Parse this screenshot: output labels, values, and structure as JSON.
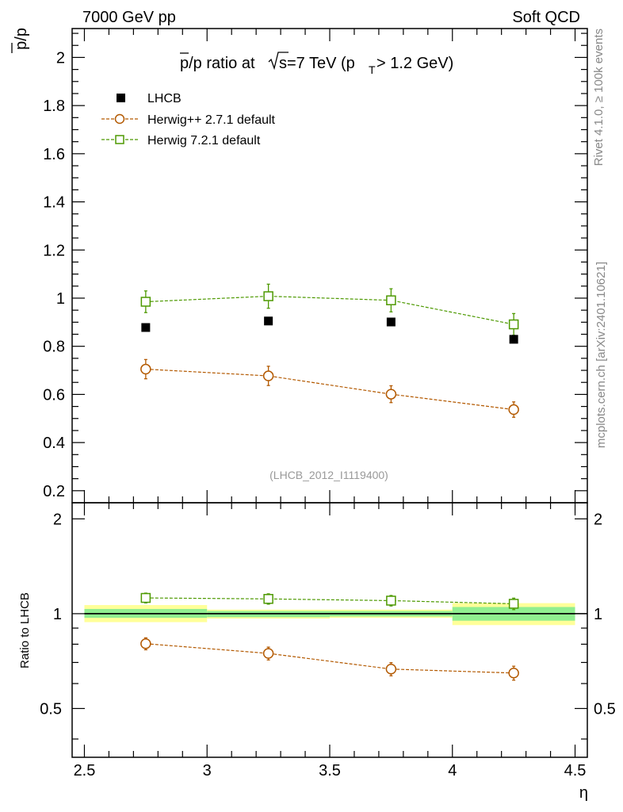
{
  "header": {
    "left": "7000 GeV pp",
    "right": "Soft QCD"
  },
  "side_labels": {
    "rivet": "Rivet 4.1.0, ≥ 100k events",
    "mcplots": "mcplots.cern.ch [arXiv:2401.10621]"
  },
  "chart_data": {
    "type": "scatter",
    "title": "p̅/p ratio at √s=7 TeV (pT > 1.2 GeV)",
    "title_parts": {
      "a": "p/p ratio at ",
      "b": "s=7 TeV (p",
      "sub": "T",
      "c": " > 1.2 GeV)"
    },
    "ylabel": "p/p",
    "xlabel": "η",
    "analysis_label": "(LHCB_2012_I1119400)",
    "xlim": [
      2.45,
      4.55
    ],
    "ylim": [
      0.15,
      2.12
    ],
    "x_ticks": [
      2.5,
      3,
      3.5,
      4,
      4.5
    ],
    "x_tick_labels": [
      "2.5",
      "3",
      "3.5",
      "4",
      "4.5"
    ],
    "y_ticks": [
      0.2,
      0.4,
      0.6,
      0.8,
      1,
      1.2,
      1.4,
      1.6,
      1.8,
      2
    ],
    "y_tick_labels": [
      "0.2",
      "0.4",
      "0.6",
      "0.8",
      "1",
      "1.2",
      "1.4",
      "1.6",
      "1.8",
      "2"
    ],
    "bins": [
      [
        2.5,
        3.0
      ],
      [
        3.0,
        3.5
      ],
      [
        3.5,
        4.0
      ],
      [
        4.0,
        4.5
      ]
    ],
    "x": [
      2.75,
      3.25,
      3.75,
      4.25
    ],
    "series": [
      {
        "name": "LHCB",
        "marker": "filled-square",
        "color": "#000000",
        "values": [
          0.878,
          0.905,
          0.901,
          0.829
        ],
        "errors": [
          0.0,
          0.0,
          0.0,
          0.0
        ]
      },
      {
        "name": "Herwig++ 2.7.1 default",
        "marker": "open-circle",
        "color": "#b35900",
        "values": [
          0.705,
          0.677,
          0.601,
          0.537
        ],
        "errors": [
          0.04,
          0.04,
          0.035,
          0.032
        ]
      },
      {
        "name": "Herwig 7.2.1 default",
        "marker": "open-square",
        "color": "#4d9900",
        "values": [
          0.985,
          1.008,
          0.991,
          0.891
        ],
        "errors": [
          0.045,
          0.05,
          0.048,
          0.045
        ]
      }
    ],
    "ratio": {
      "ylabel": "Ratio to LHCB",
      "ylim": [
        0.35,
        2.25
      ],
      "y_ticks": [
        0.5,
        1,
        2
      ],
      "y_tick_labels": [
        "0.5",
        "1",
        "2"
      ],
      "band_inner": [
        [
          0.97,
          1.035
        ],
        [
          0.975,
          1.02
        ],
        [
          0.98,
          1.02
        ],
        [
          0.95,
          1.05
        ]
      ],
      "band_outer": [
        [
          0.94,
          1.065
        ],
        [
          0.965,
          1.03
        ],
        [
          0.97,
          1.03
        ],
        [
          0.92,
          1.08
        ]
      ],
      "series": [
        {
          "name": "Herwig++ 2.7.1 default",
          "values": [
            0.803,
            0.748,
            0.667,
            0.648
          ],
          "errors": [
            0.035,
            0.035,
            0.032,
            0.033
          ]
        },
        {
          "name": "Herwig 7.2.1 default",
          "values": [
            1.122,
            1.114,
            1.1,
            1.075
          ],
          "errors": [
            0.04,
            0.042,
            0.042,
            0.045
          ]
        }
      ]
    },
    "colors": {
      "band_inner": "#90ee90",
      "band_outer": "#ffff99"
    }
  }
}
